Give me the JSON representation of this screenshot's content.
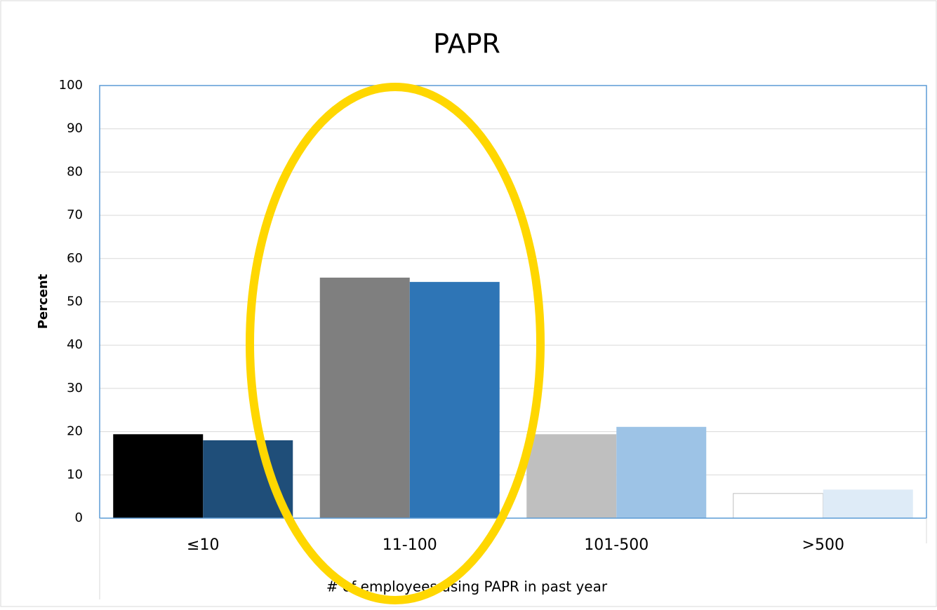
{
  "chart_data": {
    "type": "bar",
    "title": "PAPR",
    "categories": [
      "≤10",
      "11-100",
      "101-500",
      ">500"
    ],
    "series": [
      {
        "colors": [
          "#000000",
          "#7f7f7f",
          "#bfbfbf",
          "#ffffff"
        ],
        "values": [
          19.4,
          55.6,
          19.4,
          5.7
        ]
      },
      {
        "colors": [
          "#1f4e79",
          "#2e75b6",
          "#9dc3e6",
          "#deebf7"
        ],
        "values": [
          18.0,
          54.6,
          21.1,
          6.6
        ]
      }
    ],
    "ylabel": "Percent",
    "xlabel": "# of employees using PAPR in past year",
    "ylim": [
      0,
      100
    ],
    "yticks": [
      0,
      10,
      20,
      30,
      40,
      50,
      60,
      70,
      80,
      90,
      100
    ],
    "grid": true
  }
}
